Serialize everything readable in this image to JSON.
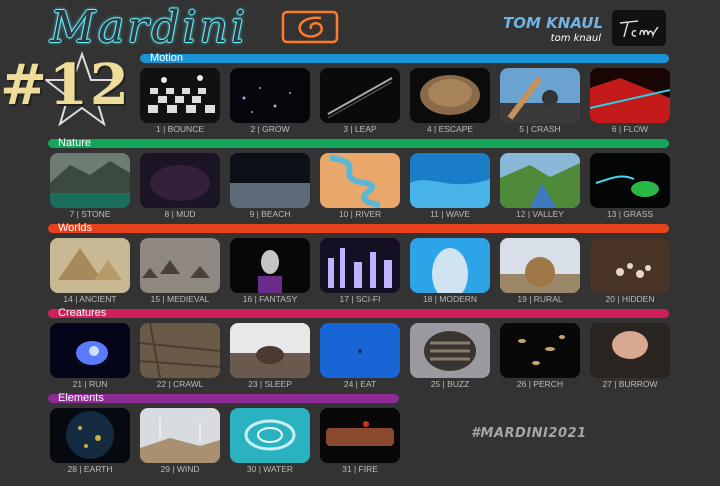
{
  "header": {
    "logo_text": "Mardini",
    "author_name": "TOM KNAUL",
    "author_handle": "tom knaul",
    "week_label": "#12"
  },
  "hashtag": "#MARDINI2021",
  "colors": {
    "motion": "#1a92d6",
    "nature": "#14a55a",
    "worlds": "#e8421c",
    "creatures": "#cf1f5a",
    "elements": "#8e2a96"
  },
  "sections": {
    "motion": {
      "label": "Motion"
    },
    "nature": {
      "label": "Nature"
    },
    "worlds": {
      "label": "Worlds"
    },
    "creatures": {
      "label": "Creatures"
    },
    "elements": {
      "label": "Elements"
    }
  },
  "prompts": [
    "1 | BOUNCE",
    "2 | GROW",
    "3 | LEAP",
    "4 | ESCAPE",
    "5 | CRASH",
    "6 | FLOW",
    "7 | STONE",
    "8 | MUD",
    "9 | BEACH",
    "10 | RIVER",
    "11 | WAVE",
    "12 | VALLEY",
    "13 | GRASS",
    "14 | ANCIENT",
    "15 | MEDIEVAL",
    "16 | FANTASY",
    "17 | SCI-FI",
    "18 | MODERN",
    "19 | RURAL",
    "20 | HIDDEN",
    "21 | RUN",
    "22 | CRAWL",
    "23 | SLEEP",
    "24 | EAT",
    "25 | BUZZ",
    "26 | PERCH",
    "27 | BURROW",
    "28 | EARTH",
    "29 | WIND",
    "30 | WATER",
    "31 | FIRE"
  ]
}
